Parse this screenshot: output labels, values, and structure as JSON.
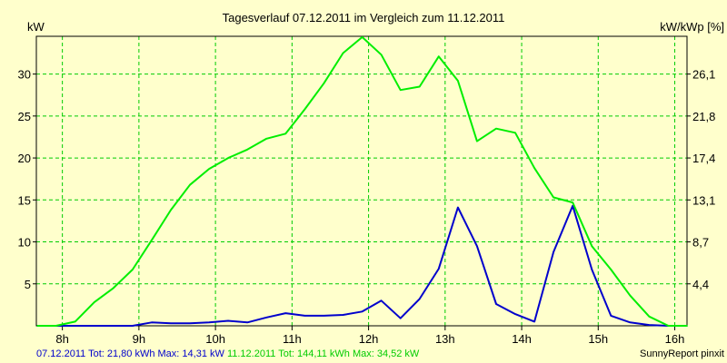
{
  "chart_data": {
    "type": "line",
    "title": "Tagesverlauf 07.12.2011 im Vergleich zum 11.12.2011",
    "ylabel_left": "kW",
    "ylabel_right": "kW/kWp [%]",
    "x_ticks": [
      "8h",
      "9h",
      "10h",
      "11h",
      "12h",
      "13h",
      "14h",
      "15h",
      "16h"
    ],
    "x_range_hours": [
      7.66,
      16.16
    ],
    "y_ticks_left": [
      "5",
      "10",
      "15",
      "20",
      "25",
      "30"
    ],
    "y_ticks_right": [
      "4,4",
      "8,7",
      "13,1",
      "17,4",
      "21,8",
      "26,1"
    ],
    "ylim": [
      0,
      34.5
    ],
    "grid": true,
    "series": [
      {
        "name": "07.12.2011",
        "color": "#0000cc",
        "x": [
          "7:40",
          "7:55",
          "8:10",
          "8:25",
          "8:40",
          "8:55",
          "9:10",
          "9:25",
          "9:40",
          "9:55",
          "10:10",
          "10:25",
          "10:40",
          "10:55",
          "11:10",
          "11:25",
          "11:40",
          "11:55",
          "12:10",
          "12:25",
          "12:40",
          "12:55",
          "13:10",
          "13:25",
          "13:40",
          "13:55",
          "14:10",
          "14:25",
          "14:40",
          "14:55",
          "15:10",
          "15:25",
          "15:40",
          "15:55",
          "16:10"
        ],
        "values": [
          0,
          0,
          0,
          0,
          0,
          0,
          0.4,
          0.3,
          0.3,
          0.4,
          0.6,
          0.4,
          1.0,
          1.5,
          1.2,
          1.2,
          1.3,
          1.7,
          3.0,
          0.9,
          3.2,
          6.8,
          14.1,
          9.5,
          2.6,
          1.4,
          0.5,
          8.8,
          14.3,
          6.7,
          1.2,
          0.4,
          0.1,
          0,
          0
        ]
      },
      {
        "name": "11.12.2011",
        "color": "#00ee00",
        "x": [
          "7:40",
          "7:55",
          "8:10",
          "8:25",
          "8:40",
          "8:55",
          "9:10",
          "9:25",
          "9:40",
          "9:55",
          "10:10",
          "10:25",
          "10:40",
          "10:55",
          "11:10",
          "11:25",
          "11:40",
          "11:55",
          "12:10",
          "12:25",
          "12:40",
          "12:55",
          "13:10",
          "13:25",
          "13:40",
          "13:55",
          "14:10",
          "14:25",
          "14:40",
          "14:55",
          "15:10",
          "15:25",
          "15:40",
          "15:55",
          "16:10"
        ],
        "values": [
          0,
          0,
          0.5,
          2.8,
          4.5,
          6.7,
          10.2,
          13.8,
          16.8,
          18.7,
          20.0,
          21.0,
          22.3,
          22.9,
          25.8,
          28.9,
          32.5,
          34.4,
          32.3,
          28.1,
          28.5,
          32.1,
          29.2,
          22.0,
          23.5,
          23.0,
          18.8,
          15.3,
          14.7,
          9.5,
          6.7,
          3.6,
          1.1,
          0,
          0
        ]
      }
    ],
    "footer": [
      {
        "text": "07.12.2011 Tot: 21,80 kWh Max: 14,31 kW",
        "color": "#0000cc"
      },
      {
        "text": "11.12.2011 Tot: 144,11 kWh Max: 34,52 kW",
        "color": "#00cc00"
      }
    ],
    "credit": "SunnyReport pinxit"
  }
}
